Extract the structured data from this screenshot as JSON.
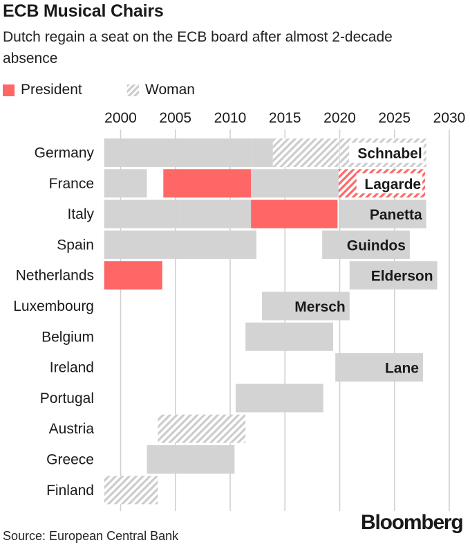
{
  "title": "ECB Musical Chairs",
  "subtitle": "Dutch regain a seat on the ECB board after almost 2-decade absence",
  "legend": {
    "president": "President",
    "woman": "Woman"
  },
  "source": "Source: European Central Bank",
  "brand": "Bloomberg",
  "colors": {
    "gray": "#d3d3d3",
    "president": "#ff6666",
    "hatch_gray": "#cccccc",
    "text": "#1a1a1a",
    "grid": "#d0d0d0"
  },
  "chart_data": {
    "type": "bar",
    "orientation": "horizontal",
    "x_axis": {
      "ticks": [
        2000,
        2005,
        2010,
        2015,
        2020,
        2025,
        2030
      ],
      "range": [
        1998.5,
        2031
      ],
      "grid": true,
      "position": "top"
    },
    "categories": [
      "Germany",
      "France",
      "Italy",
      "Spain",
      "Netherlands",
      "Luxembourg",
      "Belgium",
      "Ireland",
      "Portugal",
      "Austria",
      "Greece",
      "Finland"
    ],
    "segments": [
      {
        "country": "Germany",
        "start": 1998.5,
        "end": 2006.5,
        "style": "plain",
        "label": ""
      },
      {
        "country": "Germany",
        "start": 2006.5,
        "end": 2011.9,
        "style": "plain",
        "label": ""
      },
      {
        "country": "Germany",
        "start": 2011.9,
        "end": 2013.9,
        "style": "plain",
        "label": ""
      },
      {
        "country": "Germany",
        "start": 2013.9,
        "end": 2019.9,
        "style": "woman",
        "label": ""
      },
      {
        "country": "Germany",
        "start": 2020.0,
        "end": 2027.9,
        "style": "woman",
        "label": "Schnabel"
      },
      {
        "country": "France",
        "start": 1998.5,
        "end": 2002.4,
        "style": "plain",
        "label": ""
      },
      {
        "country": "France",
        "start": 2003.9,
        "end": 2011.9,
        "style": "president",
        "label": ""
      },
      {
        "country": "France",
        "start": 2011.9,
        "end": 2019.9,
        "style": "plain",
        "label": ""
      },
      {
        "country": "France",
        "start": 2019.9,
        "end": 2027.8,
        "style": "president-woman",
        "label": "Lagarde"
      },
      {
        "country": "Italy",
        "start": 1998.5,
        "end": 2005.4,
        "style": "plain",
        "label": ""
      },
      {
        "country": "Italy",
        "start": 2005.4,
        "end": 2011.9,
        "style": "plain",
        "label": ""
      },
      {
        "country": "Italy",
        "start": 2011.9,
        "end": 2019.8,
        "style": "president",
        "label": ""
      },
      {
        "country": "Italy",
        "start": 2019.9,
        "end": 2027.9,
        "style": "plain",
        "label": "Panetta"
      },
      {
        "country": "Spain",
        "start": 1998.5,
        "end": 2004.4,
        "style": "plain",
        "label": ""
      },
      {
        "country": "Spain",
        "start": 2004.4,
        "end": 2012.4,
        "style": "plain",
        "label": ""
      },
      {
        "country": "Spain",
        "start": 2018.4,
        "end": 2026.4,
        "style": "plain",
        "label": "Guindos"
      },
      {
        "country": "Netherlands",
        "start": 1998.5,
        "end": 2003.8,
        "style": "president",
        "label": ""
      },
      {
        "country": "Netherlands",
        "start": 2020.9,
        "end": 2028.9,
        "style": "plain",
        "label": "Elderson"
      },
      {
        "country": "Luxembourg",
        "start": 2012.9,
        "end": 2020.9,
        "style": "plain",
        "label": "Mersch"
      },
      {
        "country": "Belgium",
        "start": 2011.4,
        "end": 2019.4,
        "style": "plain",
        "label": ""
      },
      {
        "country": "Ireland",
        "start": 2019.6,
        "end": 2027.6,
        "style": "plain",
        "label": "Lane"
      },
      {
        "country": "Portugal",
        "start": 2010.5,
        "end": 2018.5,
        "style": "plain",
        "label": ""
      },
      {
        "country": "Austria",
        "start": 2003.4,
        "end": 2011.4,
        "style": "woman",
        "label": ""
      },
      {
        "country": "Greece",
        "start": 2002.4,
        "end": 2010.4,
        "style": "plain",
        "label": ""
      },
      {
        "country": "Finland",
        "start": 1998.5,
        "end": 2003.4,
        "style": "woman",
        "label": ""
      }
    ]
  }
}
